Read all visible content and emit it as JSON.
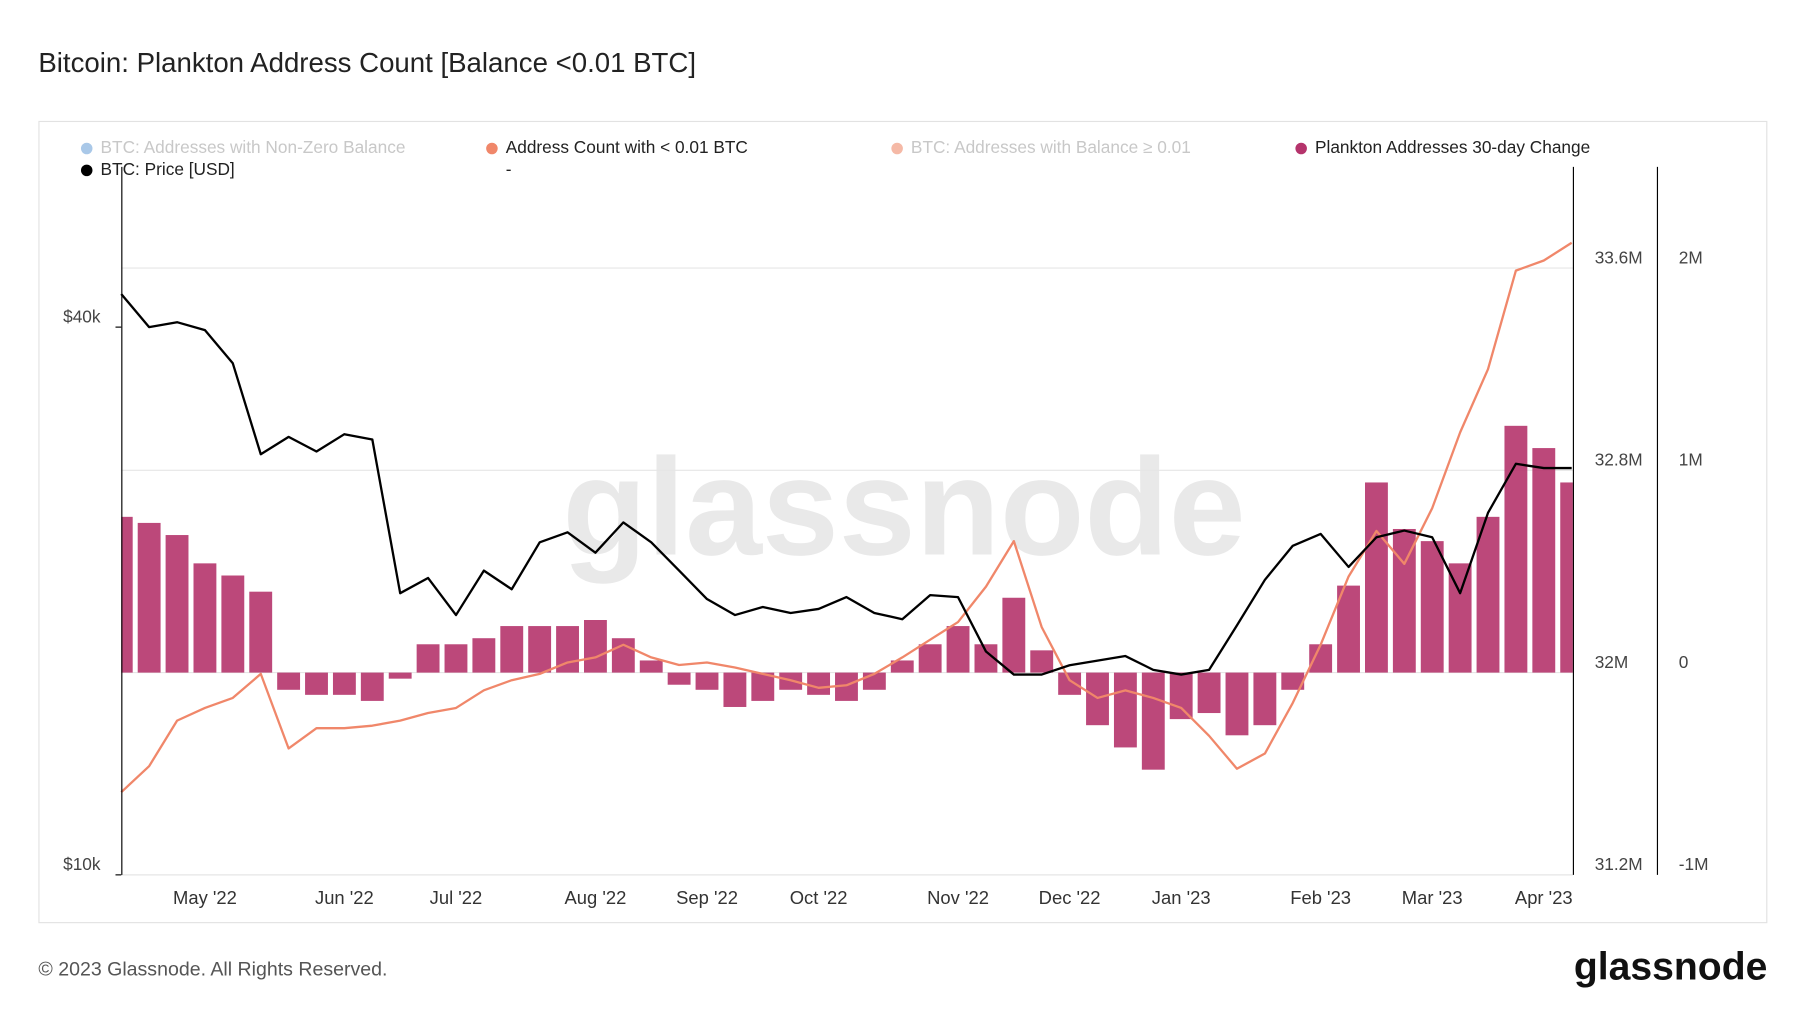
{
  "chart_data": {
    "type": "combo",
    "title": "Bitcoin: Plankton Address Count [Balance <0.01 BTC]",
    "watermark": "glassnode",
    "footer": "© 2023 Glassnode. All Rights Reserved.",
    "logo": "glassnode",
    "legend_note": "-",
    "hidden_series": [
      {
        "name": "BTC: Addresses with Non-Zero Balance",
        "color": "#a9c8e8"
      },
      {
        "name": "BTC: Addresses with Balance ≥ 0.01",
        "color": "#f5b9a6"
      }
    ],
    "categories": [
      null,
      null,
      null,
      "May '22",
      null,
      null,
      null,
      null,
      "Jun '22",
      null,
      null,
      null,
      "Jul '22",
      null,
      null,
      null,
      null,
      "Aug '22",
      null,
      null,
      null,
      "Sep '22",
      null,
      null,
      null,
      "Oct '22",
      null,
      null,
      null,
      null,
      "Nov '22",
      null,
      null,
      null,
      "Dec '22",
      null,
      null,
      null,
      "Jan '23",
      null,
      null,
      null,
      null,
      "Feb '23",
      null,
      null,
      null,
      "Mar '23",
      null,
      null,
      null,
      "Apr '23",
      null
    ],
    "series": [
      {
        "name": "Address Count with < 0.01 BTC",
        "color": "#f0876a",
        "type": "line",
        "axis": "y2",
        "values": [
          31527000,
          31630000,
          31810000,
          31860000,
          31900000,
          31995000,
          31700000,
          31780000,
          31780000,
          31790000,
          31810000,
          31840000,
          31860000,
          31930000,
          31970000,
          31995000,
          32040000,
          32060000,
          32110000,
          32060000,
          32030000,
          32040000,
          32020000,
          31995000,
          31970000,
          31940000,
          31950000,
          31995000,
          32060000,
          32130000,
          32200000,
          32340000,
          32520000,
          32180000,
          31970000,
          31900000,
          31930000,
          31900000,
          31860000,
          31750000,
          31620000,
          31680000,
          31880000,
          32110000,
          32380000,
          32560000,
          32430000,
          32650000,
          32950000,
          33200000,
          33590000,
          33630000,
          33700000
        ]
      },
      {
        "name": "Plankton Addresses 30-day Change",
        "color": "#b5346c",
        "type": "bar",
        "axis": "y3",
        "values": [
          770000,
          740000,
          680000,
          540000,
          480000,
          400000,
          -85000,
          -110000,
          -110000,
          -140000,
          -30000,
          140000,
          140000,
          170000,
          230000,
          230000,
          230000,
          260000,
          170000,
          60000,
          -60000,
          -85000,
          -170000,
          -140000,
          -85000,
          -110000,
          -140000,
          -85000,
          60000,
          140000,
          230000,
          140000,
          370000,
          110000,
          -110000,
          -260000,
          -370000,
          -480000,
          -230000,
          -200000,
          -310000,
          -260000,
          -85000,
          140000,
          430000,
          940000,
          710000,
          650000,
          540000,
          770000,
          1220000,
          1110000,
          940000
        ]
      },
      {
        "name": "BTC: Price [USD]",
        "color": "#000000",
        "type": "line",
        "axis": "y",
        "values": [
          43500,
          40000,
          40500,
          39700,
          36500,
          29000,
          30300,
          29200,
          30500,
          30100,
          20400,
          21200,
          19300,
          21600,
          20600,
          23200,
          23800,
          22600,
          24400,
          23200,
          21600,
          20100,
          19300,
          19700,
          19400,
          19600,
          20200,
          19400,
          19100,
          20300,
          20200,
          17600,
          16600,
          16600,
          17000,
          17200,
          17400,
          16800,
          16600,
          16800,
          18800,
          21100,
          23000,
          23700,
          21800,
          23500,
          23900,
          23500,
          20400,
          25000,
          28300,
          28000,
          28000
        ]
      }
    ],
    "yscale": "log",
    "ylim": [
      10000,
      60000
    ],
    "yticks": [
      {
        "value": 10000,
        "label": "$10k"
      },
      {
        "value": 40000,
        "label": "$40k"
      }
    ],
    "y2lim": [
      31200000,
      34000000
    ],
    "y2ticks": [
      {
        "value": 31200000,
        "label": "31.2M"
      },
      {
        "value": 32000000,
        "label": "32M"
      },
      {
        "value": 32800000,
        "label": "32.8M"
      },
      {
        "value": 33600000,
        "label": "33.6M"
      }
    ],
    "y3lim": [
      -1000000,
      2500000
    ],
    "y3ticks": [
      {
        "value": -1000000,
        "label": "-1M"
      },
      0,
      {
        "value": 1000000,
        "label": "1M"
      },
      {
        "value": 2000000,
        "label": "2M"
      }
    ],
    "grid": true
  }
}
